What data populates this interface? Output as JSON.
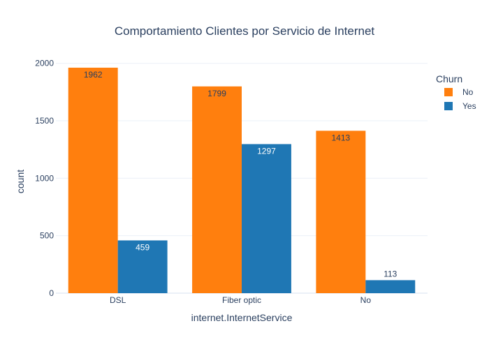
{
  "chart_data": {
    "type": "bar",
    "title": "Comportamiento Clientes por Servicio de Internet",
    "xlabel": "internet.InternetService",
    "ylabel": "count",
    "categories": [
      "DSL",
      "Fiber optic",
      "No"
    ],
    "series": [
      {
        "name": "No",
        "color": "#ff7f0e",
        "values": [
          1962,
          1799,
          1413
        ]
      },
      {
        "name": "Yes",
        "color": "#1f77b4",
        "values": [
          459,
          1297,
          113
        ]
      }
    ],
    "ylim": [
      0,
      2065
    ],
    "yticks": [
      0,
      500,
      1000,
      1500,
      2000
    ],
    "grid": true,
    "barmode": "group",
    "legend": {
      "title": "Churn",
      "placement": "top-right"
    }
  }
}
